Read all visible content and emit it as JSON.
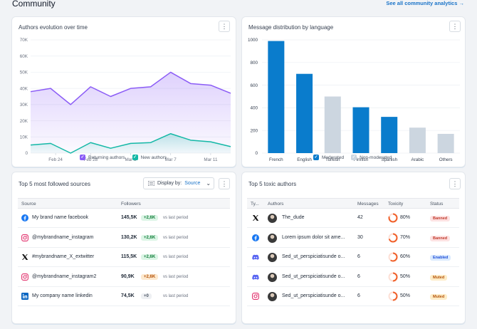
{
  "header": {
    "title": "Community",
    "see_all": "See all community analytics →"
  },
  "authors_card": {
    "title": "Authors evolution over time",
    "y_ticks": [
      "70K",
      "60K",
      "50K",
      "40K",
      "30K",
      "20K",
      "10K",
      "0"
    ],
    "x_ticks": [
      "Feb 24",
      "Feb 28",
      "Mar 3",
      "Mar 7",
      "Mar 11"
    ],
    "legend": [
      "Returning authors",
      "New authors"
    ]
  },
  "language_card": {
    "title": "Message distribution by language",
    "y_ticks": [
      "1000",
      "800",
      "600",
      "400",
      "200",
      "0"
    ],
    "legend": [
      "Moderated",
      "Non-moderated"
    ]
  },
  "sources_card": {
    "title": "Top 5 most followed sources",
    "display_by_label": "Display by:",
    "display_by_value": "Source",
    "columns": [
      "Source",
      "Followers"
    ],
    "rows": [
      {
        "icon": "facebook-icon",
        "name": "My brand name facebook",
        "followers": "145,5K",
        "delta": "+2,6K",
        "delta_type": "up",
        "note": "vs last period"
      },
      {
        "icon": "instagram-icon",
        "name": "@mybrandname_instagram",
        "followers": "130,2K",
        "delta": "+2,6K",
        "delta_type": "up",
        "note": "vs last period"
      },
      {
        "icon": "x-icon",
        "name": "#mybrandname_X_extwitter",
        "followers": "115,5K",
        "delta": "+2,6K",
        "delta_type": "up",
        "note": "vs last period"
      },
      {
        "icon": "instagram-icon",
        "name": "@mybrandname_instagram2",
        "followers": "90,9K",
        "delta": "+2,6K",
        "delta_type": "warn",
        "note": "vs last period"
      },
      {
        "icon": "linkedin-icon",
        "name": "My company name linkedin",
        "followers": "74,5K",
        "delta": "+0",
        "delta_type": "neutral",
        "note": "vs last period"
      }
    ]
  },
  "toxic_card": {
    "title": "Top 5 toxic authors",
    "columns": [
      "Ty...",
      "Authors",
      "Messages",
      "Toxicity",
      "Status"
    ],
    "rows": [
      {
        "icon": "x-icon",
        "author": "The_dude",
        "messages": "42",
        "toxicity": "80%",
        "toxicity_value": 0.8,
        "status": "Banned"
      },
      {
        "icon": "facebook-icon",
        "author": "Lorem ipsum dolor sit ame...",
        "messages": "30",
        "toxicity": "70%",
        "toxicity_value": 0.7,
        "status": "Banned"
      },
      {
        "icon": "discord-icon",
        "author": "Sed_ut_perspiciatisunde o...",
        "messages": "6",
        "toxicity": "60%",
        "toxicity_value": 0.6,
        "status": "Enabled"
      },
      {
        "icon": "discord-icon",
        "author": "Sed_ut_perspiciatisunde o...",
        "messages": "6",
        "toxicity": "50%",
        "toxicity_value": 0.5,
        "status": "Muted"
      },
      {
        "icon": "instagram-icon",
        "author": "Sed_ut_perspiciatisunde o...",
        "messages": "6",
        "toxicity": "50%",
        "toxicity_value": 0.5,
        "status": "Muted"
      }
    ]
  },
  "colors": {
    "purple": "#8b5cf6",
    "teal": "#14b8a6",
    "blue": "#0a7ccc",
    "gray_bar": "#ccd6e0",
    "banned_bg": "#fde2e2",
    "banned_fg": "#c0392b",
    "enabled_bg": "#dbeafe",
    "enabled_fg": "#1d4ed8",
    "muted_bg": "#fdecc8",
    "muted_fg": "#b45309"
  },
  "chart_data": [
    {
      "type": "area",
      "title": "Authors evolution over time",
      "x": [
        "Feb 22",
        "Feb 24",
        "Feb 26",
        "Feb 28",
        "Mar 1",
        "Mar 3",
        "Mar 5",
        "Mar 7",
        "Mar 9",
        "Mar 11",
        "Mar 13"
      ],
      "xticks": [
        "Feb 24",
        "Feb 28",
        "Mar 3",
        "Mar 7",
        "Mar 11"
      ],
      "ylim": [
        0,
        70000
      ],
      "series": [
        {
          "name": "Returning authors",
          "values": [
            38000,
            40000,
            30000,
            41000,
            35000,
            40000,
            41000,
            50000,
            43000,
            42000,
            37000
          ]
        },
        {
          "name": "New authors",
          "values": [
            5000,
            6000,
            0,
            6500,
            3000,
            6000,
            6500,
            12000,
            8000,
            7000,
            4000
          ]
        }
      ],
      "grid": true,
      "legend": "bottom-center"
    },
    {
      "type": "bar",
      "title": "Message distribution by language",
      "categories": [
        "French",
        "English",
        "Turkish",
        "Finnish",
        "Spanish",
        "Arabic",
        "Others"
      ],
      "values": [
        990,
        700,
        500,
        405,
        320,
        225,
        170
      ],
      "moderated": [
        true,
        true,
        false,
        true,
        true,
        false,
        false
      ],
      "ylim": [
        0,
        1000
      ],
      "grid": true,
      "legend": "bottom-center"
    }
  ]
}
